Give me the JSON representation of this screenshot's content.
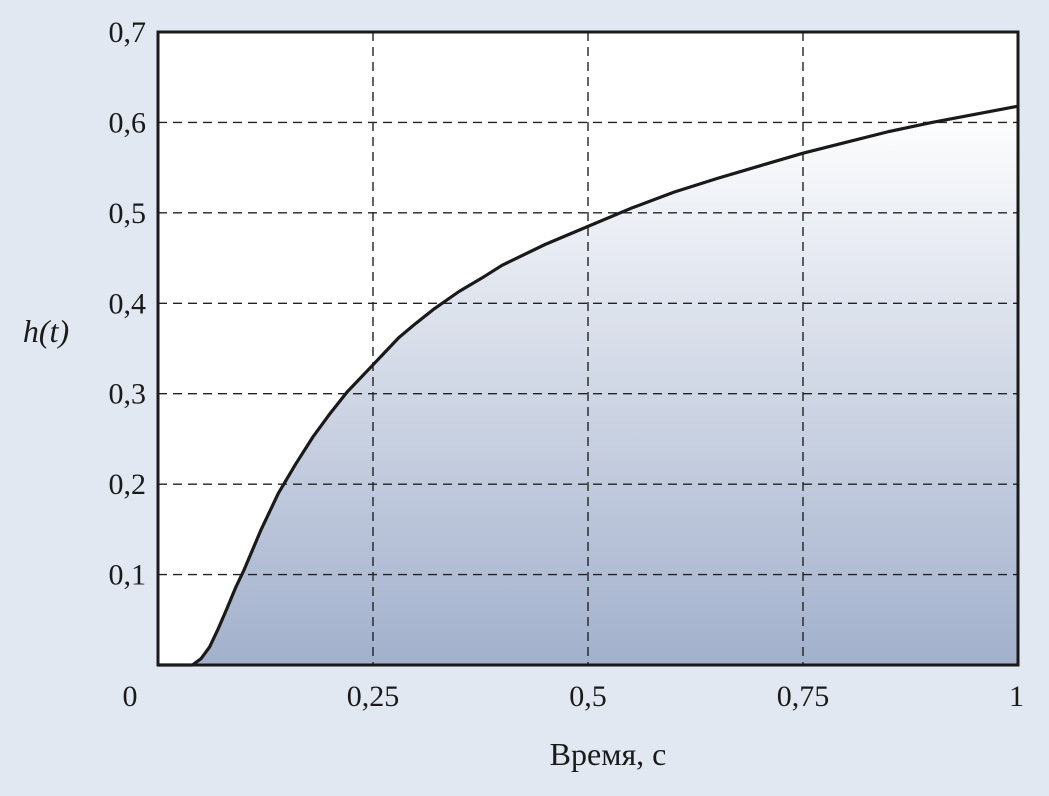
{
  "chart_data": {
    "type": "area",
    "title": "",
    "xlabel": "Время, с",
    "ylabel": "h(t)",
    "xlim": [
      0,
      1
    ],
    "ylim": [
      0,
      0.7
    ],
    "grid": true,
    "x_ticks": [
      0,
      0.25,
      0.5,
      0.75,
      1
    ],
    "x_tick_labels": [
      "0",
      "0,25",
      "0,5",
      "0,75",
      "1"
    ],
    "y_ticks": [
      0.1,
      0.2,
      0.3,
      0.4,
      0.5,
      0.6,
      0.7
    ],
    "y_tick_labels": [
      "0,1",
      "0,2",
      "0,3",
      "0,4",
      "0,5",
      "0,6",
      "0,7"
    ],
    "series": [
      {
        "x": [
          0,
          0.02,
          0.04,
          0.05,
          0.06,
          0.07,
          0.08,
          0.09,
          0.1,
          0.12,
          0.14,
          0.16,
          0.18,
          0.2,
          0.22,
          0.25,
          0.28,
          0.3,
          0.32,
          0.35,
          0.38,
          0.4,
          0.45,
          0.5,
          0.55,
          0.6,
          0.65,
          0.7,
          0.75,
          0.8,
          0.85,
          0.9,
          0.95,
          1.0
        ],
        "y": [
          0,
          0,
          0,
          0.007,
          0.02,
          0.04,
          0.062,
          0.085,
          0.105,
          0.15,
          0.19,
          0.222,
          0.252,
          0.278,
          0.302,
          0.332,
          0.362,
          0.378,
          0.393,
          0.413,
          0.43,
          0.442,
          0.465,
          0.485,
          0.505,
          0.523,
          0.538,
          0.552,
          0.566,
          0.578,
          0.59,
          0.6,
          0.609,
          0.618
        ]
      }
    ],
    "colors": {
      "curve": "#1a1a1a",
      "fill_top": "#ffffff",
      "fill_bottom": "#a2b0cc",
      "plot_bg": "#ffffff",
      "page_bg": "#e2e8f1"
    }
  }
}
